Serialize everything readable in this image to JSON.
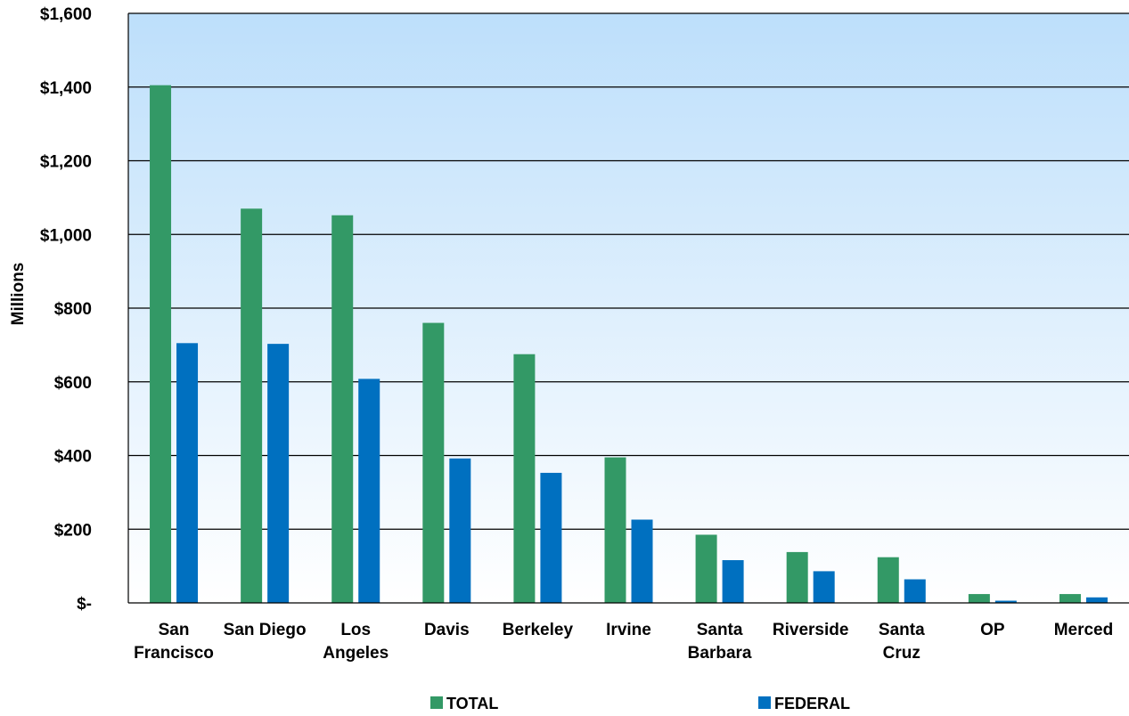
{
  "chart_data": {
    "type": "bar",
    "categories": [
      [
        "San",
        "Francisco"
      ],
      [
        "San Diego"
      ],
      [
        "Los",
        "Angeles"
      ],
      [
        "Davis"
      ],
      [
        "Berkeley"
      ],
      [
        "Irvine"
      ],
      [
        "Santa",
        "Barbara"
      ],
      [
        "Riverside"
      ],
      [
        "Santa",
        "Cruz"
      ],
      [
        "OP"
      ],
      [
        "Merced"
      ]
    ],
    "series": [
      {
        "name": "TOTAL",
        "color": "#339966",
        "values": [
          1405,
          1070,
          1052,
          760,
          675,
          395,
          185,
          138,
          124,
          24,
          24
        ]
      },
      {
        "name": "FEDERAL",
        "color": "#0070C0",
        "values": [
          705,
          703,
          608,
          392,
          353,
          226,
          116,
          86,
          64,
          6,
          15
        ]
      }
    ],
    "ylabel": "Millions",
    "ylim": [
      0,
      1600
    ],
    "yticks": [
      {
        "value": 0,
        "label": "$-"
      },
      {
        "value": 200,
        "label": "$200"
      },
      {
        "value": 400,
        "label": "$400"
      },
      {
        "value": 600,
        "label": "$600"
      },
      {
        "value": 800,
        "label": "$800"
      },
      {
        "value": 1000,
        "label": "$1,000"
      },
      {
        "value": 1200,
        "label": "$1,200"
      },
      {
        "value": 1400,
        "label": "$1,400"
      },
      {
        "value": 1600,
        "label": "$1,600"
      }
    ],
    "grid": true,
    "legend_position": "bottom",
    "background_gradient": {
      "top": "#BDDFFB",
      "bottom": "#FFFFFF"
    },
    "gridline_color": "#000000"
  }
}
